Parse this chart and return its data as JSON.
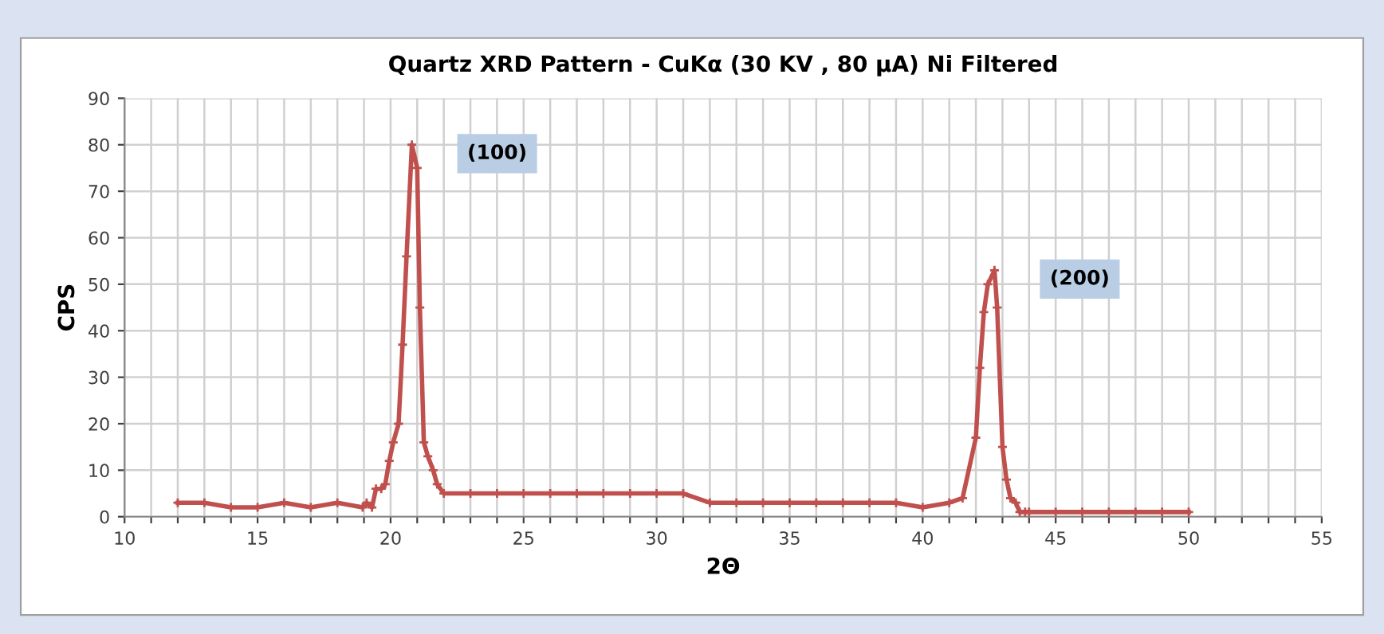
{
  "chart_data": {
    "type": "line",
    "title": "Quartz XRD Pattern - CuKα (30 KV , 80 μA) Ni Filtered",
    "xlabel": "2Θ",
    "ylabel": "CPS",
    "x": [
      12,
      13,
      14,
      15,
      16,
      17,
      18,
      18.95,
      19.1,
      19.3,
      19.45,
      19.65,
      19.8,
      19.95,
      20.1,
      20.3,
      20.45,
      20.6,
      20.8,
      21.0,
      21.1,
      21.25,
      21.4,
      21.6,
      21.75,
      22,
      23,
      24,
      25,
      26,
      27,
      28,
      29,
      30,
      31,
      32,
      33,
      34,
      35,
      36,
      37,
      38,
      39,
      40,
      41,
      41.5,
      42.0,
      42.15,
      42.3,
      42.45,
      42.7,
      42.8,
      43.0,
      43.15,
      43.3,
      43.5,
      43.65,
      43.85,
      44,
      45,
      46,
      47,
      48,
      49,
      50
    ],
    "series": [
      {
        "color": "#c0504d",
        "values": [
          3,
          3,
          2,
          2,
          3,
          2,
          3,
          2,
          3,
          2,
          6,
          6,
          7,
          12,
          16,
          20,
          37,
          56,
          80,
          75,
          45,
          16,
          13,
          10,
          7,
          5,
          5,
          5,
          5,
          5,
          5,
          5,
          5,
          5,
          5,
          3,
          3,
          3,
          3,
          3,
          3,
          3,
          3,
          2,
          3,
          4,
          17,
          32,
          44,
          50,
          53,
          45,
          15,
          8,
          4,
          3,
          1,
          1,
          1,
          1,
          1,
          1,
          1,
          1,
          1
        ]
      }
    ],
    "xlim": [
      10,
      55
    ],
    "ylim": [
      0,
      90
    ],
    "xticks": [
      10,
      {
        "value": 11,
        "label": null
      },
      {
        "value": 12,
        "label": null
      },
      {
        "value": 13,
        "label": null
      },
      {
        "value": 14,
        "label": null
      },
      15,
      {
        "value": 16,
        "label": null
      },
      {
        "value": 17,
        "label": null
      },
      {
        "value": 18,
        "label": null
      },
      {
        "value": 19,
        "label": null
      },
      20,
      {
        "value": 21,
        "label": null
      },
      {
        "value": 22,
        "label": null
      },
      {
        "value": 23,
        "label": null
      },
      {
        "value": 24,
        "label": null
      },
      25,
      {
        "value": 26,
        "label": null
      },
      {
        "value": 27,
        "label": null
      },
      {
        "value": 28,
        "label": null
      },
      {
        "value": 29,
        "label": null
      },
      30,
      {
        "value": 31,
        "label": null
      },
      {
        "value": 32,
        "label": null
      },
      {
        "value": 33,
        "label": null
      },
      {
        "value": 34,
        "label": null
      },
      35,
      {
        "value": 36,
        "label": null
      },
      {
        "value": 37,
        "label": null
      },
      {
        "value": 38,
        "label": null
      },
      {
        "value": 39,
        "label": null
      },
      40,
      {
        "value": 41,
        "label": null
      },
      {
        "value": 42,
        "label": null
      },
      {
        "value": 43,
        "label": null
      },
      {
        "value": 44,
        "label": null
      },
      45,
      {
        "value": 46,
        "label": null
      },
      {
        "value": 47,
        "label": null
      },
      {
        "value": 48,
        "label": null
      },
      {
        "value": 49,
        "label": null
      },
      50,
      {
        "value": 51,
        "label": null
      },
      {
        "value": 52,
        "label": null
      },
      {
        "value": 53,
        "label": null
      },
      {
        "value": 54,
        "label": null
      },
      55
    ],
    "yticks": [
      0,
      10,
      20,
      30,
      40,
      50,
      60,
      70,
      80,
      90
    ],
    "grid": true,
    "marker": "cross",
    "line_style": "solid",
    "annotations": [
      {
        "text": "(100)",
        "x": 20.8,
        "y": 80
      },
      {
        "text": "(200)",
        "x": 42.7,
        "y": 53
      }
    ]
  }
}
